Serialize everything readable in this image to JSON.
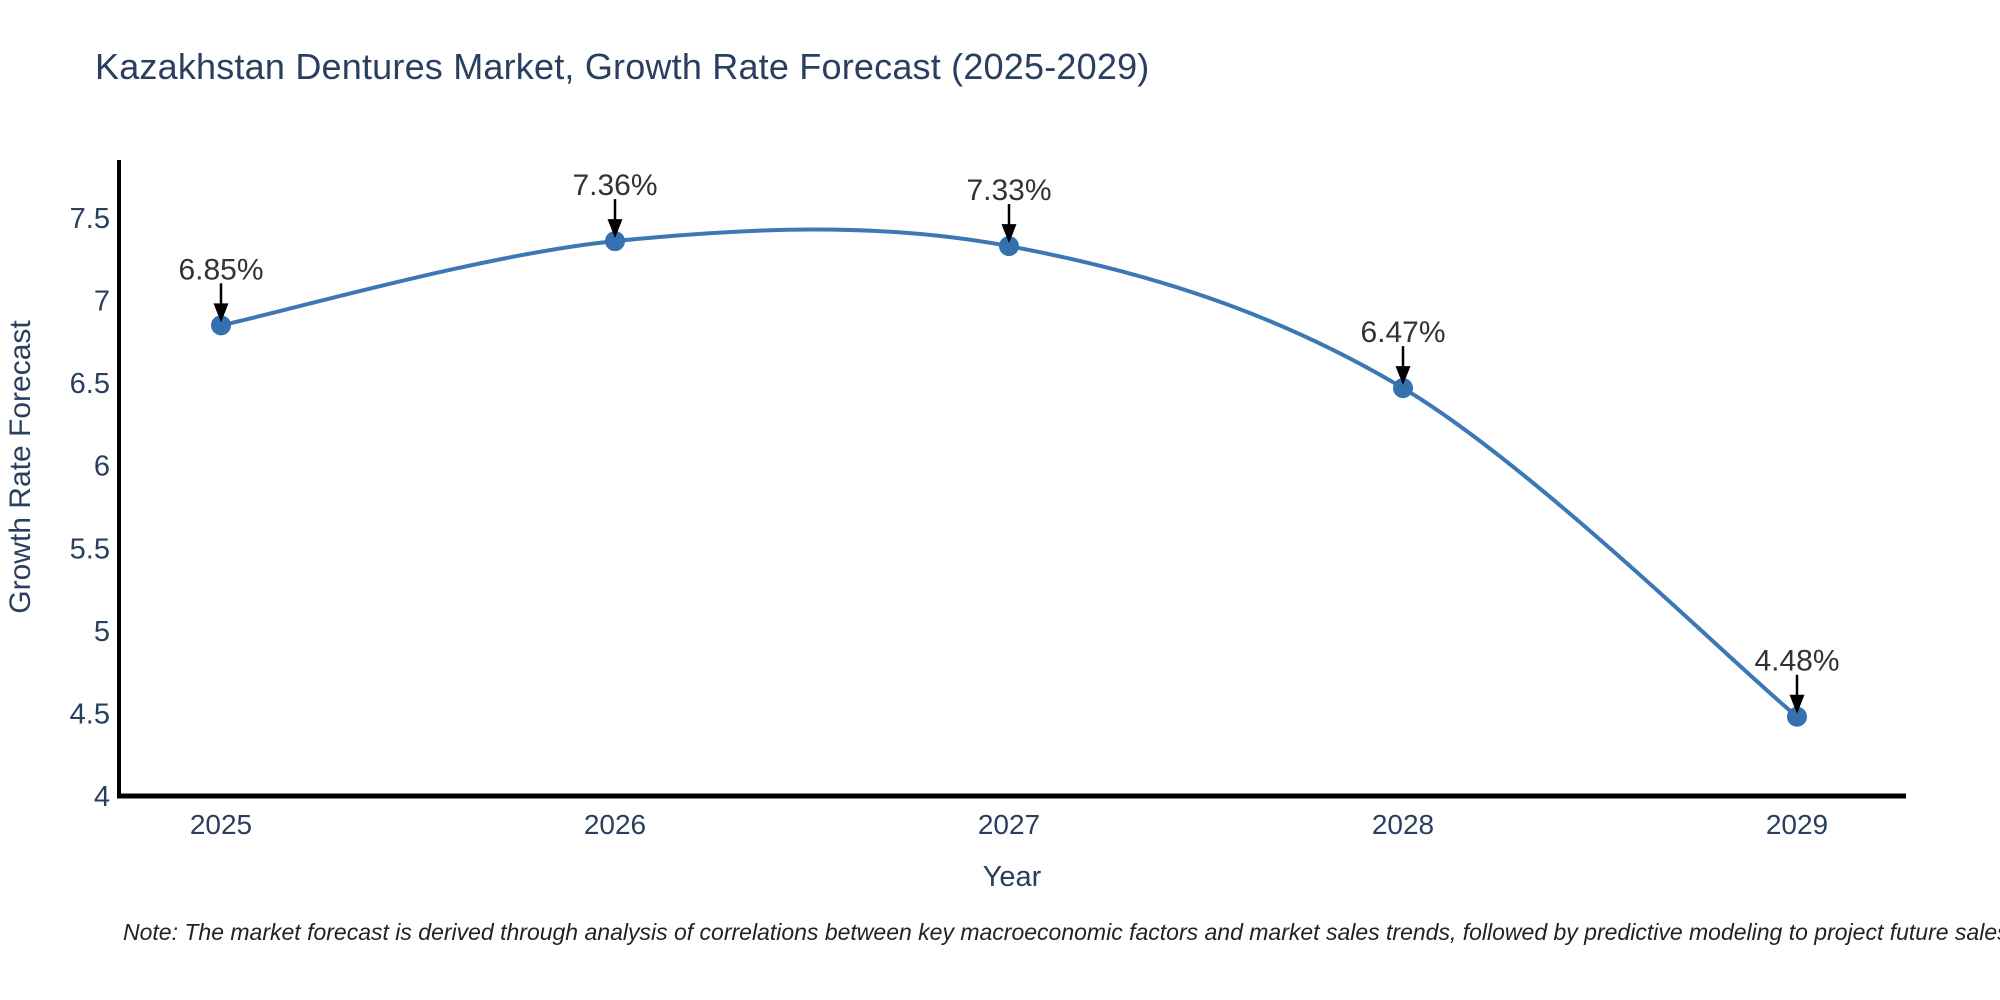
{
  "title": "Kazakhstan Dentures Market, Growth Rate Forecast (2025-2029)",
  "note": "Note: The market forecast is derived through analysis of correlations between key macroeconomic factors and market sales trends, followed by predictive modeling to project future sales",
  "chart_data": {
    "type": "line",
    "title": "Kazakhstan Dentures Market, Growth Rate Forecast (2025-2029)",
    "xlabel": "Year",
    "ylabel": "Growth Rate Forecast",
    "categories": [
      "2025",
      "2026",
      "2027",
      "2028",
      "2029"
    ],
    "x": [
      2025,
      2026,
      2027,
      2028,
      2029
    ],
    "series": [
      {
        "name": "Growth Rate Forecast",
        "values": [
          6.85,
          7.36,
          7.33,
          6.47,
          4.48
        ],
        "point_labels": [
          "6.85%",
          "7.36%",
          "7.33%",
          "6.47%",
          "4.48%"
        ]
      }
    ],
    "ylim": [
      4,
      7.5
    ],
    "yticks": [
      4,
      4.5,
      5,
      5.5,
      6,
      6.5,
      7,
      7.5
    ],
    "ytick_labels": [
      "4",
      "4.5",
      "5",
      "5.5",
      "6",
      "6.5",
      "7",
      "7.5"
    ],
    "line_shape": "spline",
    "grid": false,
    "legend": "none",
    "annotations_style": "arrow-down-to-point",
    "colors": {
      "line": "#3c78b3",
      "marker": "#3471ae",
      "axis": "#000000",
      "tick_text": "#2a3f5f",
      "title_text": "#2a3f5f",
      "annotation_text": "#333333",
      "arrow": "#000000",
      "background": "#ffffff"
    }
  }
}
